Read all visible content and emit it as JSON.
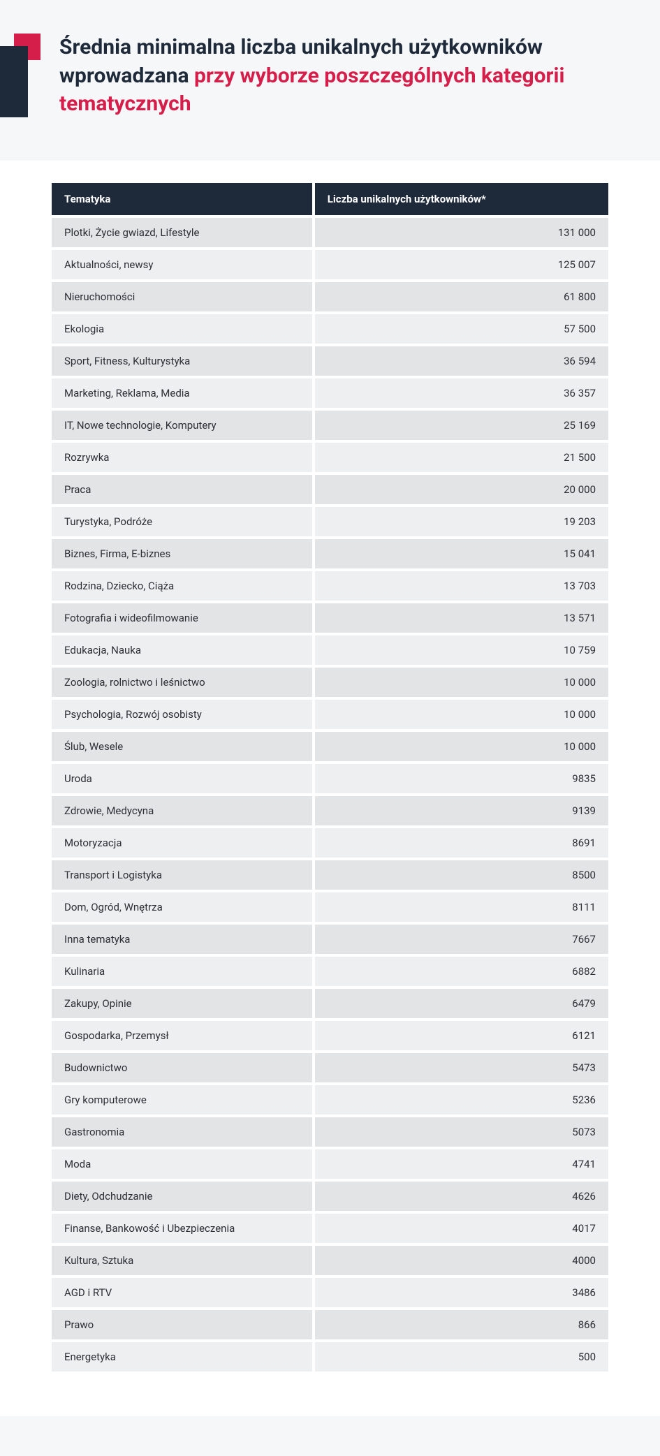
{
  "header": {
    "title_plain": "Średnia minimalna liczba unikalnych użytkowników wprowadzana ",
    "title_highlight": "przy wyborze poszczególnych kategorii tematycznych"
  },
  "colors": {
    "accent_red": "#d51e4a",
    "accent_navy": "#1e2a3a",
    "page_bg": "#f6f7f8",
    "row_odd": "#e3e4e6",
    "row_even": "#eeeff0"
  },
  "table": {
    "columns": [
      "Tematyka",
      "Liczba unikalnych użytkowników*"
    ],
    "rows": [
      [
        "Plotki, Życie gwiazd, Lifestyle",
        "131 000"
      ],
      [
        "Aktualności, newsy",
        "125 007"
      ],
      [
        "Nieruchomości",
        "61 800"
      ],
      [
        "Ekologia",
        "57 500"
      ],
      [
        "Sport, Fitness, Kulturystyka",
        "36 594"
      ],
      [
        "Marketing, Reklama, Media",
        "36 357"
      ],
      [
        "IT, Nowe technologie, Komputery",
        "25 169"
      ],
      [
        "Rozrywka",
        "21 500"
      ],
      [
        "Praca",
        "20 000"
      ],
      [
        "Turystyka, Podróże",
        "19 203"
      ],
      [
        "Biznes, Firma, E-biznes",
        "15 041"
      ],
      [
        "Rodzina, Dziecko, Ciąża",
        "13 703"
      ],
      [
        "Fotografia i wideofilmowanie",
        "13 571"
      ],
      [
        "Edukacja, Nauka",
        "10 759"
      ],
      [
        "Zoologia, rolnictwo i leśnictwo",
        "10 000"
      ],
      [
        "Psychologia, Rozwój osobisty",
        "10 000"
      ],
      [
        "Ślub, Wesele",
        "10 000"
      ],
      [
        "Uroda",
        "9835"
      ],
      [
        "Zdrowie, Medycyna",
        "9139"
      ],
      [
        "Motoryzacja",
        "8691"
      ],
      [
        "Transport i Logistyka",
        "8500"
      ],
      [
        "Dom, Ogród, Wnętrza",
        "8111"
      ],
      [
        "Inna tematyka",
        "7667"
      ],
      [
        "Kulinaria",
        "6882"
      ],
      [
        "Zakupy, Opinie",
        "6479"
      ],
      [
        "Gospodarka, Przemysł",
        "6121"
      ],
      [
        "Budownictwo",
        "5473"
      ],
      [
        "Gry komputerowe",
        "5236"
      ],
      [
        "Gastronomia",
        "5073"
      ],
      [
        "Moda",
        "4741"
      ],
      [
        "Diety, Odchudzanie",
        "4626"
      ],
      [
        "Finanse, Bankowość i Ubezpieczenia",
        "4017"
      ],
      [
        "Kultura, Sztuka",
        "4000"
      ],
      [
        "AGD i RTV",
        "3486"
      ],
      [
        "Prawo",
        "866"
      ],
      [
        "Energetyka",
        "500"
      ]
    ]
  }
}
